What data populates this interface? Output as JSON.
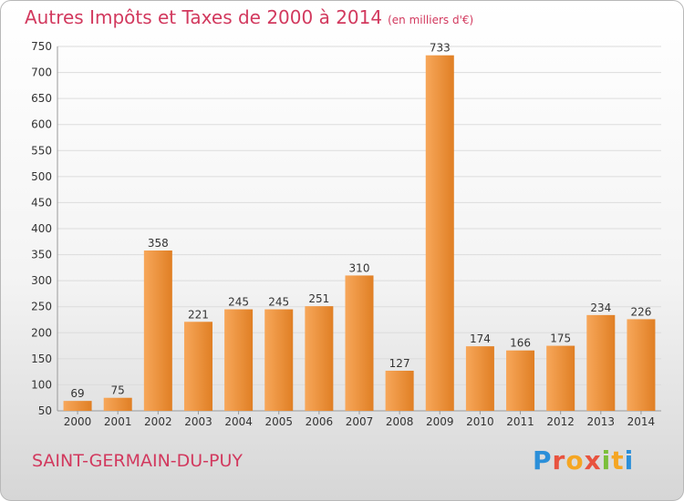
{
  "header": {
    "title": "Autres Impôts et Taxes de 2000 à 2014",
    "unit": "(en milliers d'€)"
  },
  "footer": {
    "commune": "SAINT-GERMAIN-DU-PUY",
    "logo_letters": [
      "P",
      "r",
      "o",
      "x",
      "i",
      "t",
      "i"
    ]
  },
  "colors": {
    "title": "#d2395e",
    "bar_light": "#f7a75a",
    "bar_dark": "#e07f24",
    "grid": "#dcdcdc"
  },
  "chart_data": {
    "type": "bar",
    "title": "Autres Impôts et Taxes de 2000 à 2014",
    "subtitle": "(en milliers d'€)",
    "xlabel": "",
    "ylabel": "",
    "categories": [
      "2000",
      "2001",
      "2002",
      "2003",
      "2004",
      "2005",
      "2006",
      "2007",
      "2008",
      "2009",
      "2010",
      "2011",
      "2012",
      "2013",
      "2014"
    ],
    "values": [
      69,
      75,
      358,
      221,
      245,
      245,
      251,
      310,
      127,
      733,
      174,
      166,
      175,
      234,
      226
    ],
    "ylim": [
      50,
      750
    ],
    "yticks": [
      50,
      100,
      150,
      200,
      250,
      300,
      350,
      400,
      450,
      500,
      550,
      600,
      650,
      700,
      750
    ],
    "grid": true,
    "data_labels": true
  }
}
